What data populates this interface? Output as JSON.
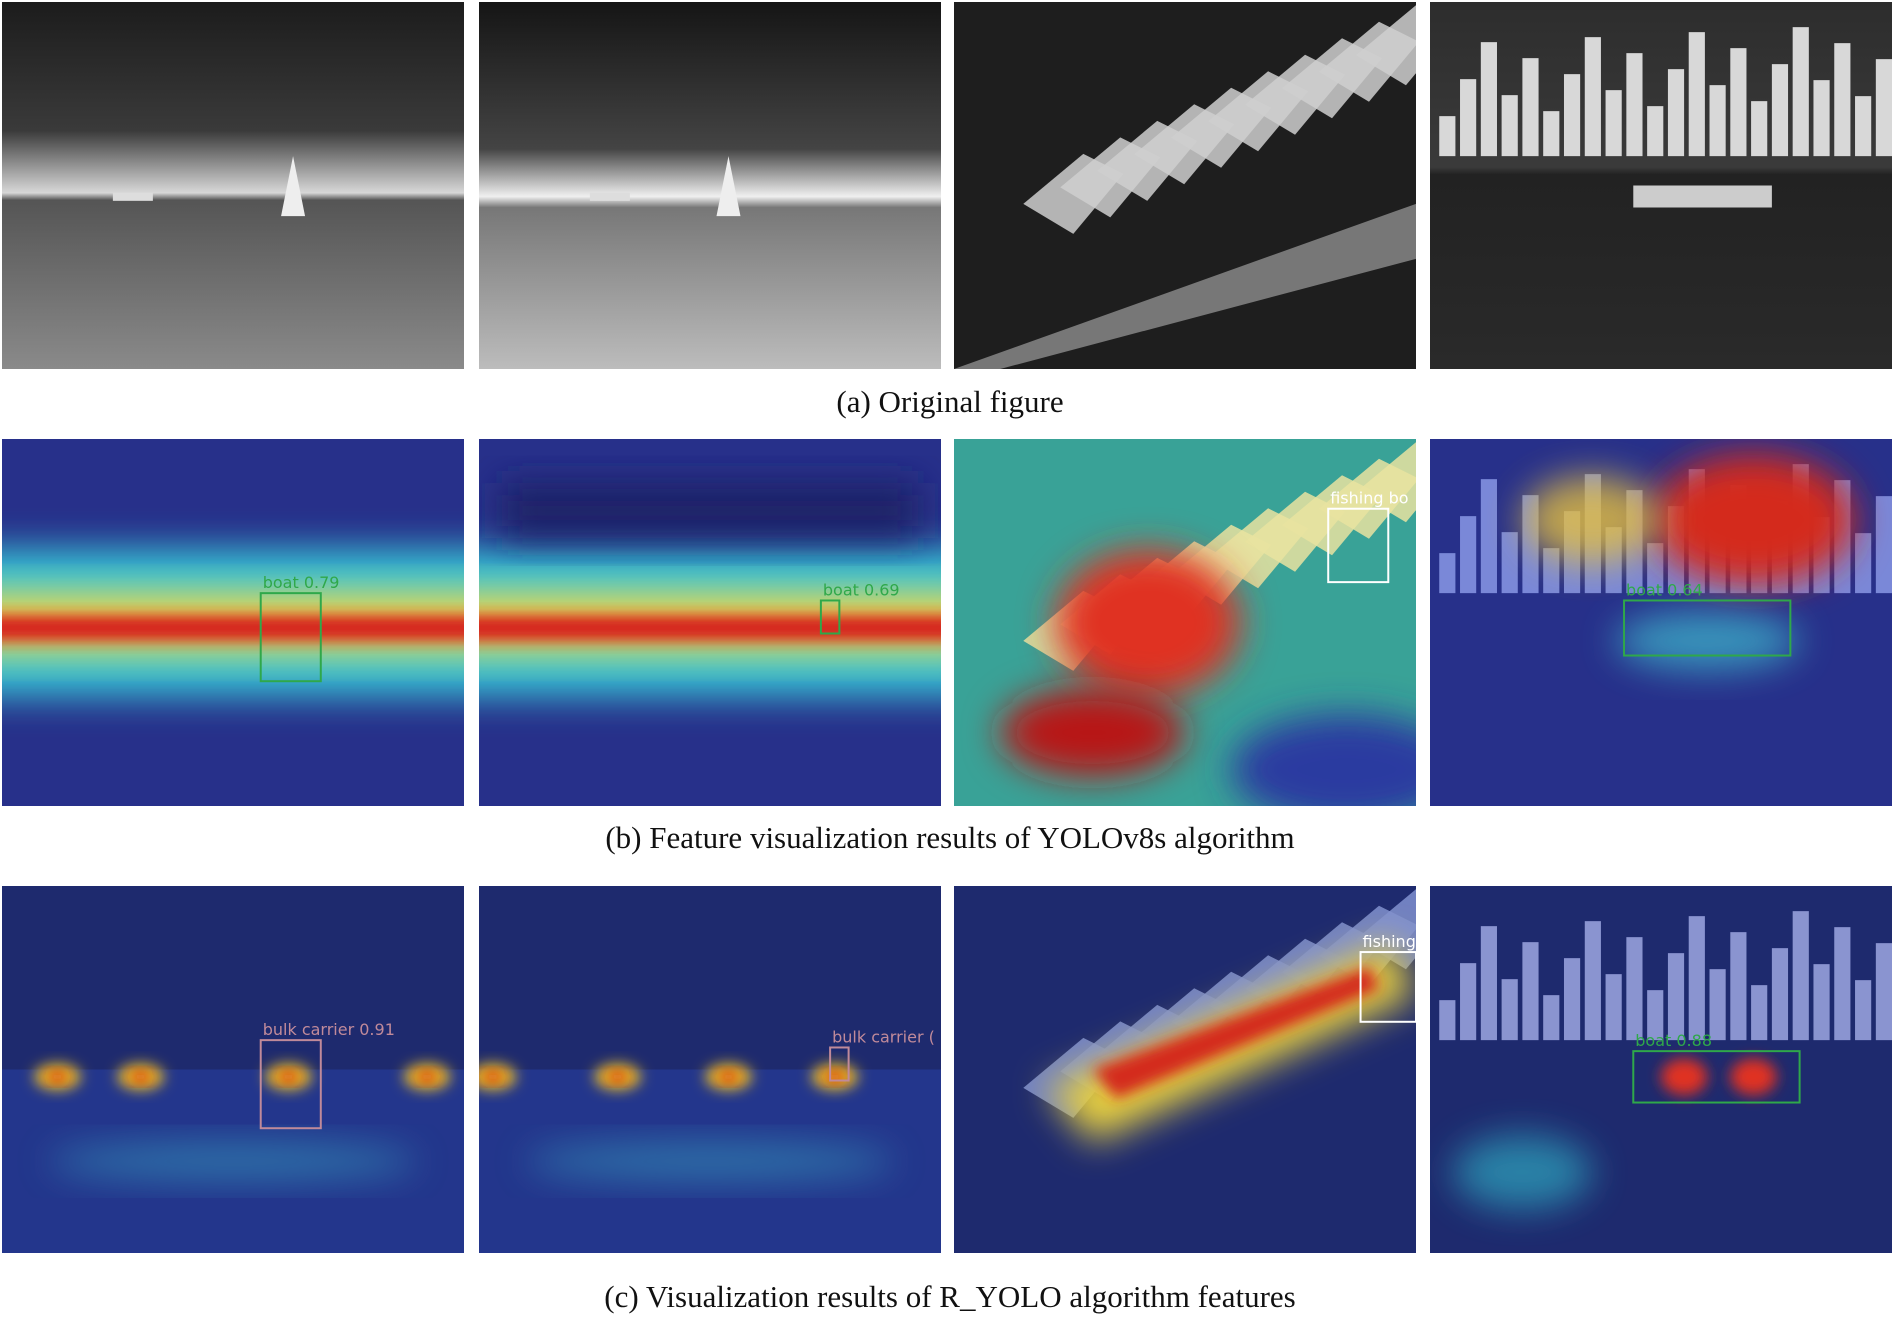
{
  "rows": [
    {
      "caption": "(a) Original figure"
    },
    {
      "caption": "(b) Feature visualization results of YOLOv8s algorithm",
      "labels": [
        "boat 0.79",
        "boat 0.69",
        "fishing bo",
        "boat 0.64"
      ]
    },
    {
      "caption": "(c) Visualization results of R_YOLO algorithm features",
      "labels": [
        "bulk carrier 0.91",
        "bulk carrier (",
        "fishing",
        "boat 0.88"
      ]
    }
  ]
}
